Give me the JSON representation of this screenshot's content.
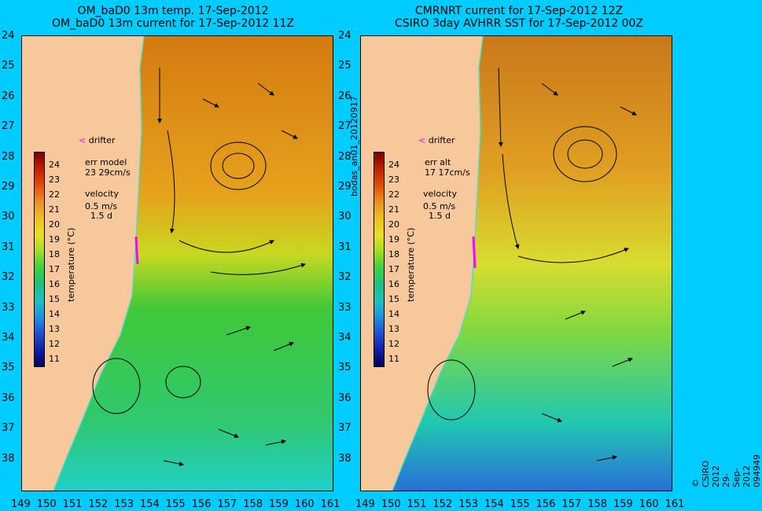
{
  "left_panel": {
    "title_line1": "OM_baD0 13m temp. 17-Sep-2012",
    "title_line2": "OM_baD0 13m current for 17-Sep-2012 11Z",
    "err_label": "err model",
    "err_value": "23 29cm/s"
  },
  "right_panel": {
    "title_line1": "CMRNRT current for 17-Sep-2012 12Z",
    "title_line2": "CSIRO 3day AVHRR SST for 17-Sep-2012 00Z",
    "err_label": "err alt",
    "err_value": "17 17cm/s"
  },
  "legend": {
    "drifter": "drifter",
    "velocity": "velocity",
    "speed": "0.5 m/s",
    "duration": "1.5 d",
    "cbar_label": "temperature (°C)",
    "cbar_ticks": [
      "24",
      "23",
      "22",
      "21",
      "20",
      "19",
      "18",
      "17",
      "16",
      "15",
      "14",
      "13",
      "12",
      "11"
    ]
  },
  "axes": {
    "lat_ticks": [
      "24",
      "25",
      "26",
      "27",
      "28",
      "29",
      "30",
      "31",
      "32",
      "33",
      "34",
      "35",
      "36",
      "37",
      "38"
    ],
    "lon_ticks": [
      "149",
      "150",
      "151",
      "152",
      "153",
      "154",
      "155",
      "156",
      "157",
      "158",
      "159",
      "160",
      "161"
    ]
  },
  "side_labels": {
    "middle": "bodas_an01_20120917",
    "right": "© CSIRO 2012   29-Sep-2012 094949"
  },
  "colors": {
    "land": "#f7c89c",
    "ocean_bg": "#00ccff",
    "coast": "#4fe0c0",
    "drifter": "#ff00ff"
  }
}
